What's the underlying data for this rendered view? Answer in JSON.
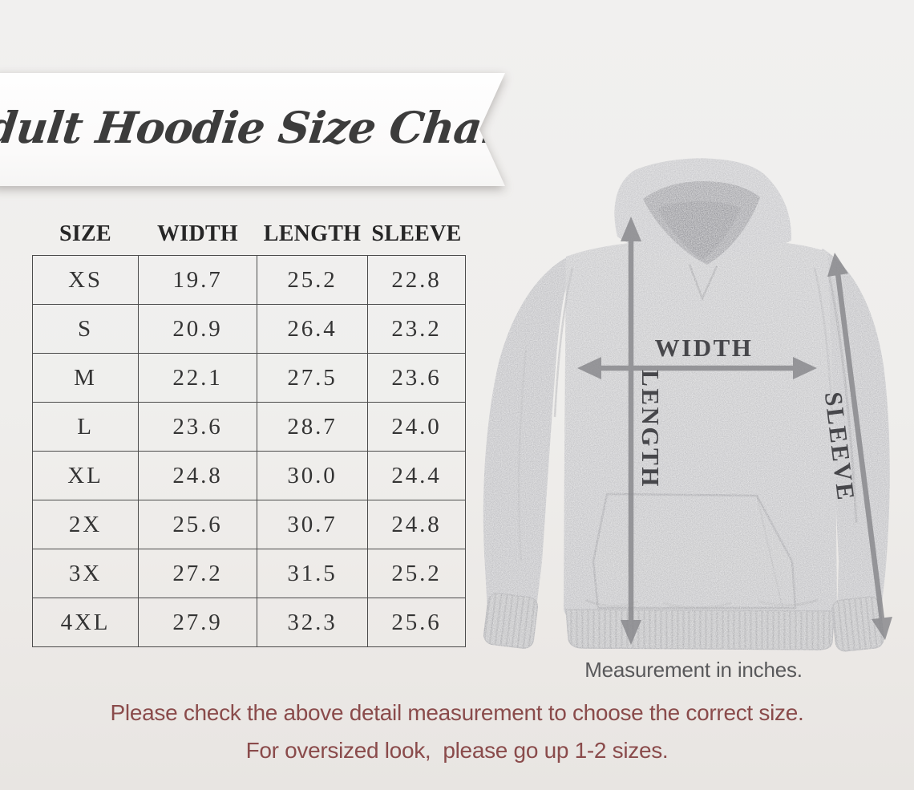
{
  "banner": {
    "title": "Adult Hoodie Size Chart"
  },
  "size_table": {
    "headers": [
      "SIZE",
      "WIDTH",
      "LENGTH",
      "SLEEVE"
    ],
    "rows": [
      [
        "XS",
        "19.7",
        "25.2",
        "22.8"
      ],
      [
        "S",
        "20.9",
        "26.4",
        "23.2"
      ],
      [
        "M",
        "22.1",
        "27.5",
        "23.6"
      ],
      [
        "L",
        "23.6",
        "28.7",
        "24.0"
      ],
      [
        "XL",
        "24.8",
        "30.0",
        "24.4"
      ],
      [
        "2X",
        "25.6",
        "30.7",
        "24.8"
      ],
      [
        "3X",
        "27.2",
        "31.5",
        "25.2"
      ],
      [
        "4XL",
        "27.9",
        "32.3",
        "25.6"
      ]
    ]
  },
  "diagram": {
    "width_label": "WIDTH",
    "length_label": "LENGTH",
    "sleeve_label": "SLEEVE",
    "note": "Measurement in inches."
  },
  "footer": {
    "line1": "Please check the above detail measurement to choose the correct size.",
    "line2": "For oversized look,  please go up 1-2 sizes."
  },
  "colors": {
    "accent_text": "#8A4B4B",
    "note_text": "#59595B",
    "hoodie_gray": "#C8C8CA",
    "arrow_gray": "#87878B",
    "table_border": "#4C4C4C"
  },
  "chart_data": {
    "type": "table",
    "title": "Adult Hoodie Size Chart",
    "units": "inches",
    "columns": [
      "SIZE",
      "WIDTH",
      "LENGTH",
      "SLEEVE"
    ],
    "rows": [
      [
        "XS",
        19.7,
        25.2,
        22.8
      ],
      [
        "S",
        20.9,
        26.4,
        23.2
      ],
      [
        "M",
        22.1,
        27.5,
        23.6
      ],
      [
        "L",
        23.6,
        28.7,
        24.0
      ],
      [
        "XL",
        24.8,
        30.0,
        24.4
      ],
      [
        "2X",
        25.6,
        30.7,
        24.8
      ],
      [
        "3X",
        27.2,
        31.5,
        25.2
      ],
      [
        "4XL",
        27.9,
        32.3,
        25.6
      ]
    ]
  }
}
